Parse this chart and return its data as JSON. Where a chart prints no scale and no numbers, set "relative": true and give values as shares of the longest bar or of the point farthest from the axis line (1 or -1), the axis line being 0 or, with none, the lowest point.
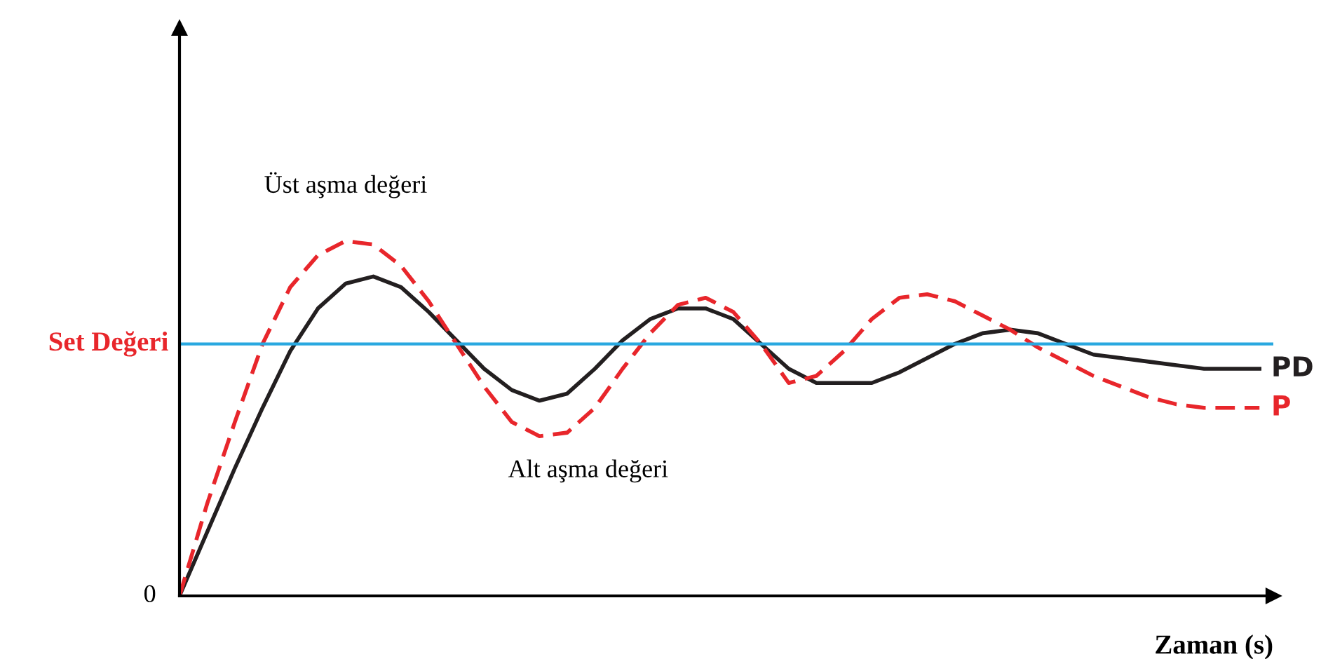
{
  "chart_data": {
    "type": "line",
    "relative": true,
    "xlabel": "Zaman (s)",
    "categories": [
      null,
      null,
      null,
      null,
      null,
      null,
      null,
      null,
      null,
      null,
      null,
      null,
      null,
      null,
      null,
      null,
      null,
      null,
      null,
      null,
      null,
      null,
      null,
      null,
      null,
      null,
      null,
      null,
      null,
      null,
      null,
      null,
      null,
      null,
      null,
      null,
      null,
      null,
      null,
      null
    ],
    "series": [
      {
        "name": "PD",
        "color": "#231f20",
        "line_style": "solid",
        "values": [
          0,
          0.18,
          0.36,
          0.53,
          0.69,
          0.81,
          0.88,
          0.9,
          0.87,
          0.8,
          0.72,
          0.64,
          0.58,
          0.55,
          0.57,
          0.64,
          0.72,
          0.78,
          0.81,
          0.81,
          0.78,
          0.71,
          0.64,
          0.6,
          0.6,
          0.6,
          0.63,
          0.67,
          0.71,
          0.74,
          0.75,
          0.74,
          0.71,
          0.68,
          0.67,
          0.66,
          0.65,
          0.64,
          0.64,
          0.64
        ]
      },
      {
        "name": "P",
        "color": "#e8262b",
        "line_style": "dashed",
        "values": [
          0,
          0.26,
          0.49,
          0.71,
          0.87,
          0.96,
          1.0,
          0.99,
          0.93,
          0.83,
          0.71,
          0.59,
          0.49,
          0.45,
          0.46,
          0.53,
          0.64,
          0.74,
          0.82,
          0.84,
          0.8,
          0.71,
          0.6,
          0.62,
          0.69,
          0.78,
          0.84,
          0.85,
          0.83,
          0.79,
          0.75,
          0.7,
          0.66,
          0.62,
          0.59,
          0.56,
          0.54,
          0.53,
          0.53,
          0.53
        ]
      }
    ],
    "ref_lines": [
      {
        "axis": "y",
        "value": 0.71,
        "label": "Set Değeri",
        "color": "#29a8e0",
        "line_style": "solid"
      }
    ],
    "annotations": [
      "Üst aşma değeri",
      "Alt aşma değeri",
      "0"
    ],
    "legend": false
  }
}
